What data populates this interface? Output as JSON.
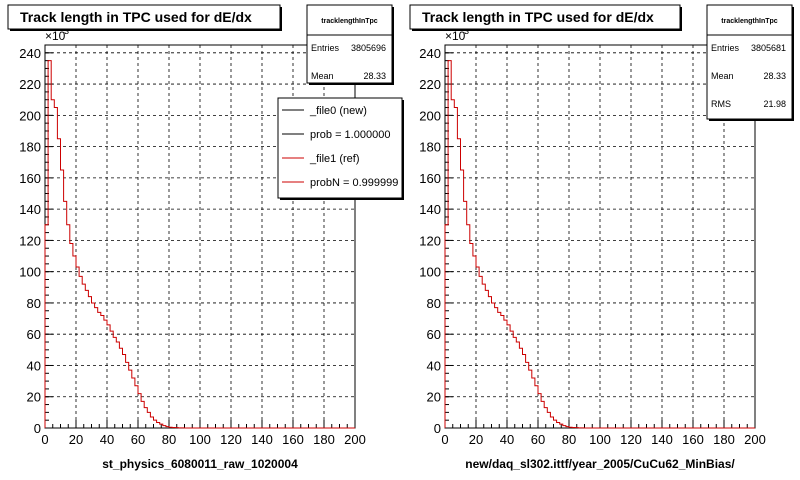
{
  "chart_data": [
    {
      "type": "histogram",
      "title": "Track length in TPC used for dE/dx",
      "xlabel": "st_physics_6080011_raw_1020004",
      "ylabel": "",
      "y_exponent": "×10",
      "y_exponent_power": "3",
      "xlim": [
        0,
        200
      ],
      "ylim": [
        0,
        245
      ],
      "xticks": [
        "0",
        "20",
        "40",
        "60",
        "80",
        "100",
        "120",
        "140",
        "160",
        "180",
        "200"
      ],
      "yticks": [
        "0",
        "20",
        "40",
        "60",
        "80",
        "100",
        "120",
        "140",
        "160",
        "180",
        "200",
        "220",
        "240"
      ],
      "grid": true,
      "stats": {
        "name": "tracklengthInTpc",
        "rows": [
          {
            "label": "Entries",
            "value": "3805696"
          },
          {
            "label": "Mean",
            "value": "28.33"
          }
        ]
      },
      "legend": {
        "position": "top-right",
        "entries": [
          {
            "label": "_file0 (new)",
            "color": "#000000"
          },
          {
            "label": "prob = 1.000000",
            "color": "#000000"
          },
          {
            "label": "_file1 (ref)",
            "color": "#cc0000"
          },
          {
            "label": "probN = 0.999999",
            "color": "#cc0000"
          }
        ]
      },
      "series": [
        {
          "name": "_file1 (ref)",
          "color": "#cc0000",
          "x": [
            0,
            2,
            4,
            6,
            8,
            10,
            12,
            14,
            16,
            18,
            20,
            22,
            24,
            26,
            28,
            30,
            32,
            34,
            36,
            38,
            40,
            42,
            44,
            46,
            48,
            50,
            52,
            54,
            56,
            58,
            60,
            62,
            64,
            66,
            68,
            70,
            72,
            74,
            76,
            78,
            80,
            82,
            84,
            86,
            88,
            90,
            92,
            94,
            96,
            98,
            100,
            102,
            104,
            106,
            108,
            110,
            112
          ],
          "y": [
            130,
            235,
            210,
            205,
            185,
            165,
            145,
            130,
            118,
            110,
            103,
            97,
            92,
            88,
            84,
            80,
            77,
            74,
            72,
            69,
            66,
            62,
            58,
            55,
            51,
            47,
            42,
            37,
            32,
            27,
            22,
            17,
            13,
            10,
            7,
            5,
            3.5,
            2.5,
            1.5,
            0.9,
            0.5,
            0.3,
            0.2,
            0.1,
            0.05,
            0,
            0,
            0,
            0,
            0,
            0,
            0,
            0,
            0,
            0,
            0,
            0
          ]
        }
      ]
    },
    {
      "type": "histogram",
      "title": "Track length in TPC used for dE/dx",
      "xlabel": "new/daq_sl302.ittf/year_2005/CuCu62_MinBias/",
      "ylabel": "",
      "y_exponent": "×10",
      "y_exponent_power": "3",
      "xlim": [
        0,
        200
      ],
      "ylim": [
        0,
        245
      ],
      "xticks": [
        "0",
        "20",
        "40",
        "60",
        "80",
        "100",
        "120",
        "140",
        "160",
        "180",
        "200"
      ],
      "yticks": [
        "0",
        "20",
        "40",
        "60",
        "80",
        "100",
        "120",
        "140",
        "160",
        "180",
        "200",
        "220",
        "240"
      ],
      "grid": true,
      "stats": {
        "name": "tracklengthInTpc",
        "rows": [
          {
            "label": "Entries",
            "value": "3805681"
          },
          {
            "label": "Mean",
            "value": "28.33"
          },
          {
            "label": "RMS",
            "value": "21.98"
          }
        ]
      },
      "series": [
        {
          "name": "",
          "color": "#cc0000",
          "x": [
            0,
            2,
            4,
            6,
            8,
            10,
            12,
            14,
            16,
            18,
            20,
            22,
            24,
            26,
            28,
            30,
            32,
            34,
            36,
            38,
            40,
            42,
            44,
            46,
            48,
            50,
            52,
            54,
            56,
            58,
            60,
            62,
            64,
            66,
            68,
            70,
            72,
            74,
            76,
            78,
            80,
            82,
            84,
            86,
            88,
            90,
            92,
            94,
            96,
            98,
            100,
            102,
            104,
            106,
            108,
            110,
            112
          ],
          "y": [
            130,
            235,
            210,
            205,
            185,
            165,
            145,
            130,
            118,
            110,
            103,
            97,
            92,
            88,
            84,
            80,
            77,
            74,
            72,
            69,
            66,
            62,
            58,
            55,
            51,
            47,
            42,
            37,
            32,
            27,
            22,
            17,
            13,
            10,
            7,
            5,
            3.5,
            2.5,
            1.5,
            0.9,
            0.5,
            0.3,
            0.2,
            0.1,
            0.05,
            0,
            0,
            0,
            0,
            0,
            0,
            0,
            0,
            0,
            0,
            0,
            0
          ]
        }
      ]
    }
  ]
}
